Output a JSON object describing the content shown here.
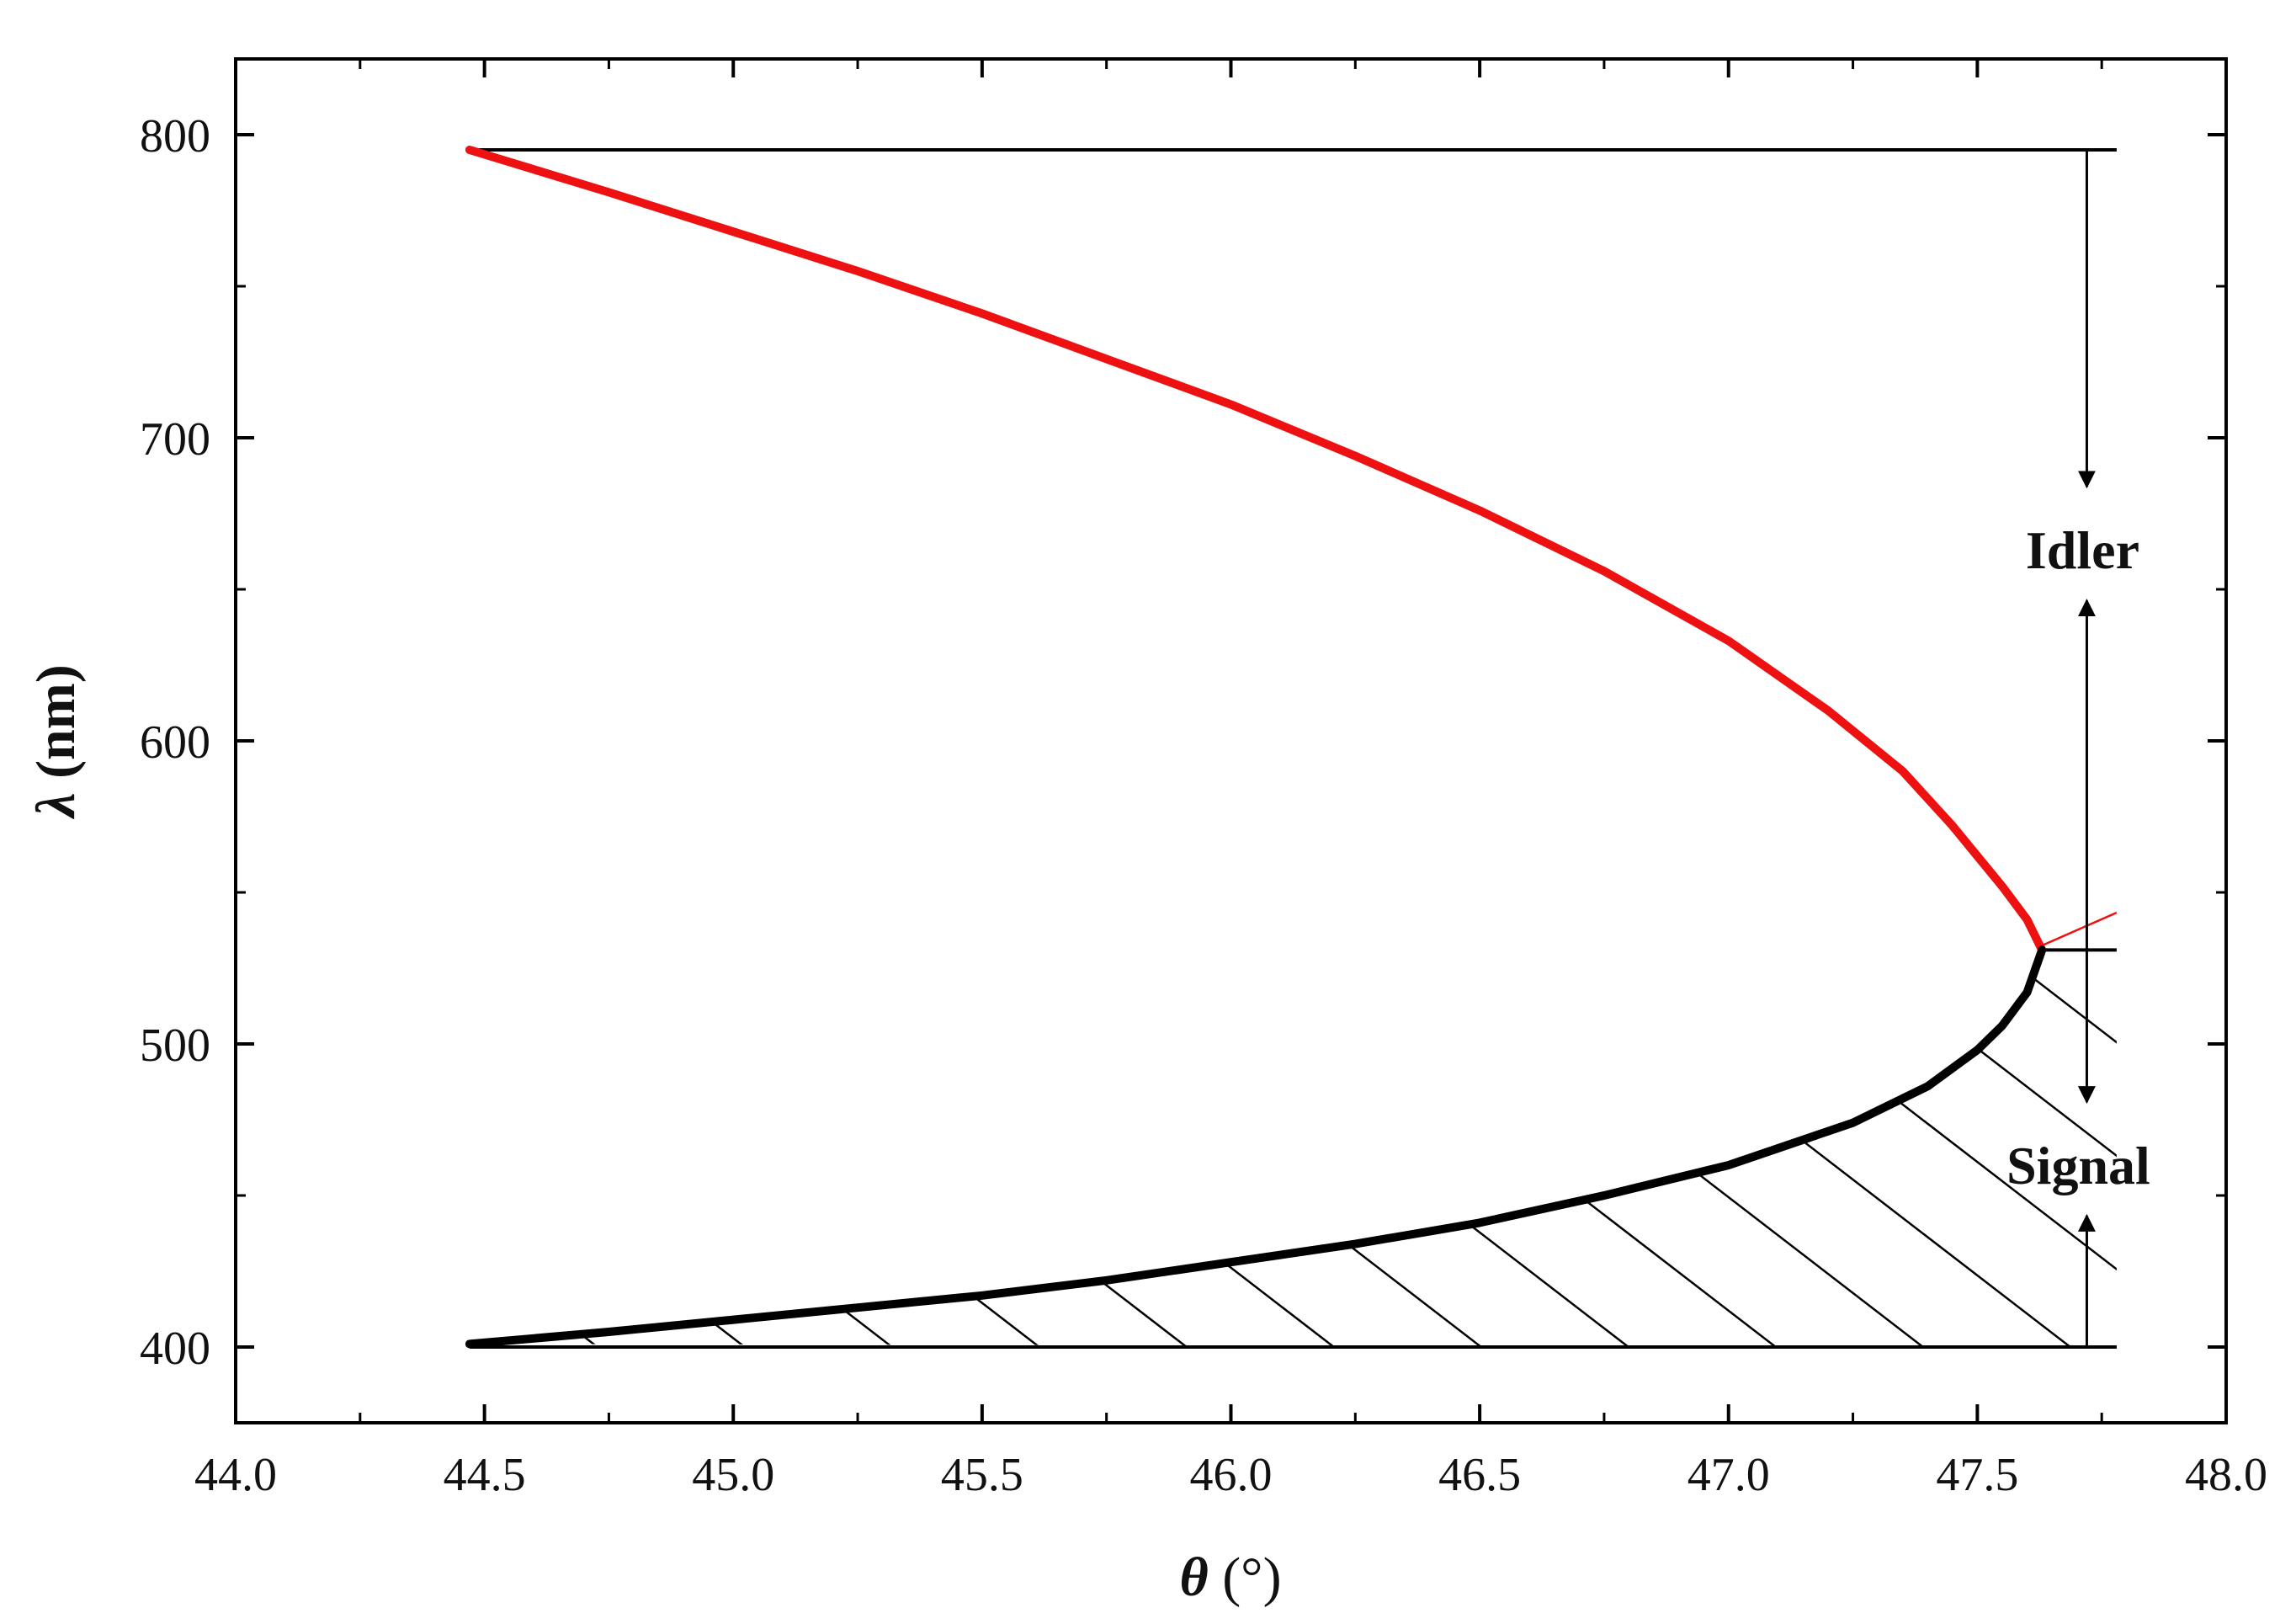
{
  "chart_data": {
    "type": "line",
    "title": "",
    "xlabel_symbol": "θ",
    "xlabel_unit": "(°)",
    "ylabel_symbol": "λ",
    "ylabel_unit": "(nm)",
    "xlim": [
      44.0,
      48.0
    ],
    "ylim": [
      375,
      825
    ],
    "x_ticks": [
      "44.0",
      "44.5",
      "45.0",
      "45.5",
      "46.0",
      "46.5",
      "47.0",
      "47.5",
      "48.0"
    ],
    "x_tick_values": [
      44.0,
      44.5,
      45.0,
      45.5,
      46.0,
      46.5,
      47.0,
      47.5,
      48.0
    ],
    "y_ticks": [
      "400",
      "500",
      "600",
      "700",
      "800"
    ],
    "y_tick_values": [
      400,
      500,
      600,
      700,
      800
    ],
    "grid": false,
    "series": [
      {
        "color": "#ee1111",
        "points": [
          [
            44.47,
            795
          ],
          [
            44.75,
            781
          ],
          [
            45.0,
            768
          ],
          [
            45.25,
            755
          ],
          [
            45.5,
            741
          ],
          [
            45.75,
            726
          ],
          [
            46.0,
            711
          ],
          [
            46.25,
            694
          ],
          [
            46.5,
            676
          ],
          [
            46.75,
            656
          ],
          [
            47.0,
            633
          ],
          [
            47.2,
            610
          ],
          [
            47.35,
            590
          ],
          [
            47.45,
            572
          ],
          [
            47.55,
            552
          ],
          [
            47.6,
            541
          ],
          [
            47.63,
            531
          ]
        ]
      },
      {
        "color": "#000000",
        "points": [
          [
            47.63,
            531
          ],
          [
            47.6,
            517
          ],
          [
            47.55,
            506
          ],
          [
            47.5,
            498
          ],
          [
            47.4,
            486
          ],
          [
            47.25,
            474
          ],
          [
            47.0,
            460
          ],
          [
            46.75,
            450
          ],
          [
            46.5,
            441
          ],
          [
            46.25,
            434
          ],
          [
            46.0,
            428
          ],
          [
            45.75,
            422
          ],
          [
            45.5,
            417
          ],
          [
            45.25,
            413
          ],
          [
            45.0,
            409
          ],
          [
            44.75,
            405
          ],
          [
            44.47,
            401
          ]
        ]
      }
    ],
    "reference_lines": [
      {
        "y": 795,
        "x_from": 44.47,
        "x_to": 47.78
      },
      {
        "y": 400,
        "x_from": 44.47,
        "x_to": 47.78
      },
      {
        "y": 531,
        "x_from": 47.63,
        "x_to": 47.78
      }
    ],
    "annotations": [
      {
        "text": "Idler",
        "x": 47.72,
        "y": 663
      },
      {
        "text": "Signal",
        "x": 47.72,
        "y": 460
      }
    ],
    "bracket_x": 47.72
  }
}
